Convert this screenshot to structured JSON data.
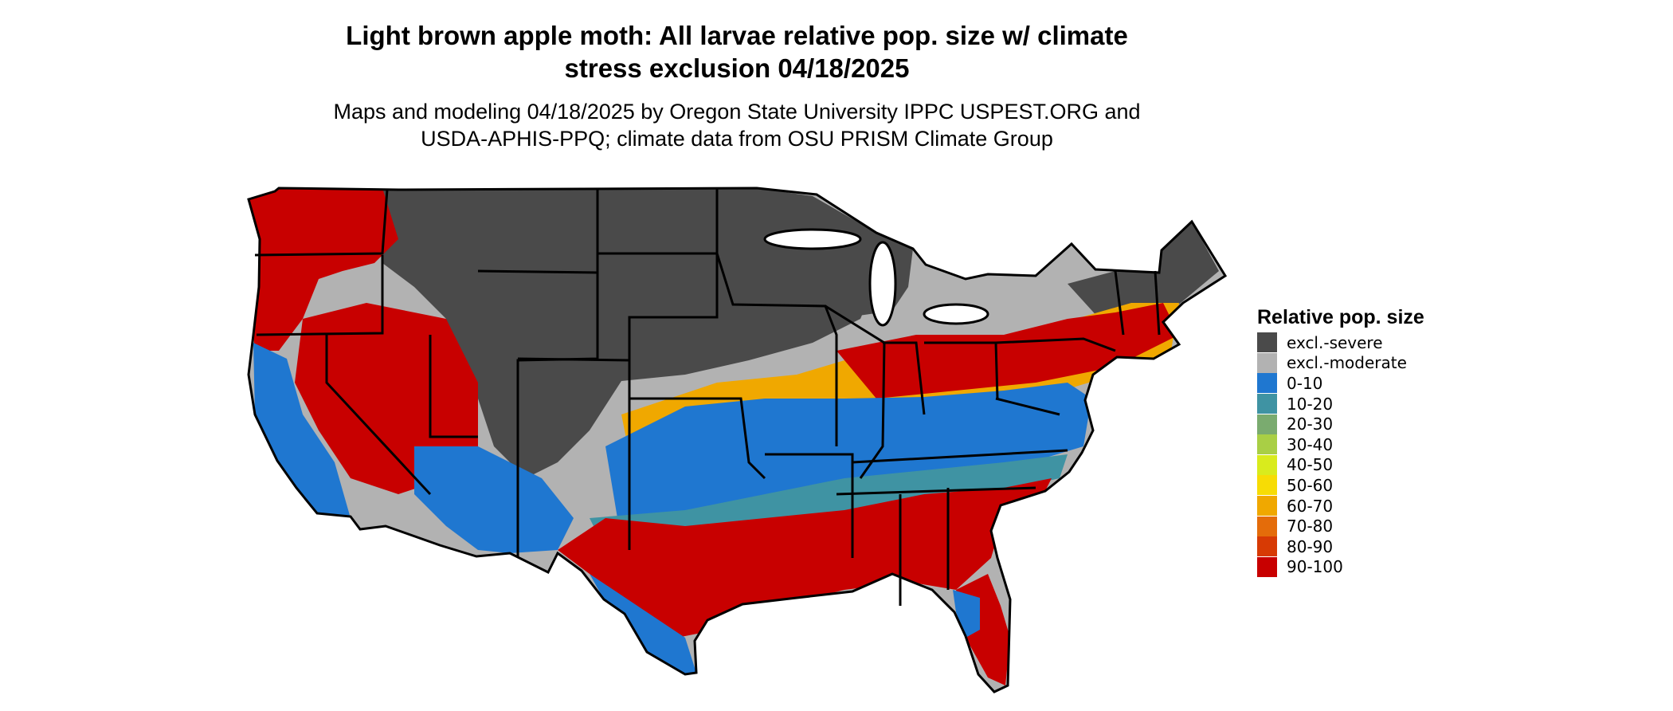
{
  "header": {
    "title_line1": "Light brown apple moth: All larvae relative pop. size w/ climate",
    "title_line2": "stress exclusion 04/18/2025",
    "subtitle_line1": "Maps and modeling 04/18/2025 by Oregon State University IPPC USPEST.ORG and",
    "subtitle_line2": "USDA-APHIS-PPQ; climate data from OSU PRISM Climate Group"
  },
  "legend": {
    "title": "Relative pop. size",
    "items": [
      {
        "label": "excl.-severe",
        "color": "#4a4a4a"
      },
      {
        "label": "excl.-moderate",
        "color": "#b2b2b2"
      },
      {
        "label": "0-10",
        "color": "#1f77d0"
      },
      {
        "label": "10-20",
        "color": "#3f93a3"
      },
      {
        "label": "20-30",
        "color": "#7aab6f"
      },
      {
        "label": "30-40",
        "color": "#a9cf45"
      },
      {
        "label": "40-50",
        "color": "#d9eb1d"
      },
      {
        "label": "50-60",
        "color": "#f7dc05"
      },
      {
        "label": "60-70",
        "color": "#f0a800"
      },
      {
        "label": "70-80",
        "color": "#e46c0a"
      },
      {
        "label": "80-90",
        "color": "#d73a04"
      },
      {
        "label": "90-100",
        "color": "#c80000"
      }
    ]
  }
}
